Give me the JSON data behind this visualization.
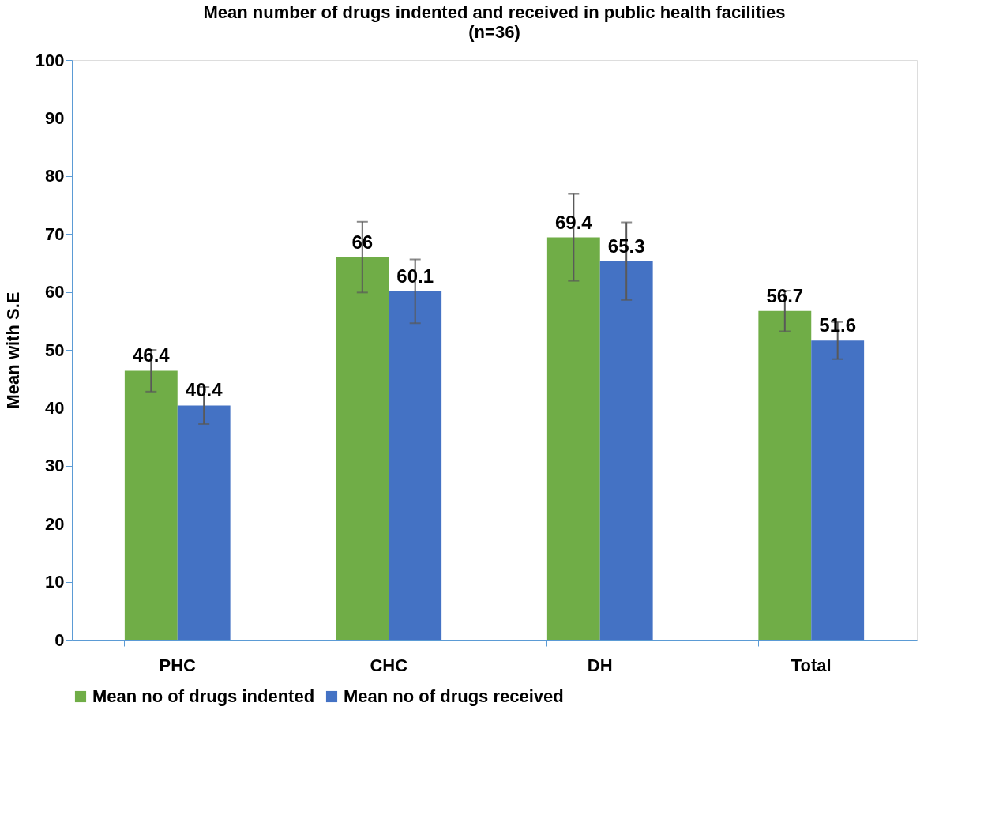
{
  "chart_data": {
    "type": "bar",
    "title": "Mean number of drugs indented and received in public health facilities",
    "subtitle": "(n=36)",
    "ylabel": "Mean with S.E",
    "categories": [
      "PHC",
      "CHC",
      "DH",
      "Total"
    ],
    "series": [
      {
        "name": "Mean no of drugs indented",
        "color": "#70ad47",
        "values": [
          46.4,
          66,
          69.4,
          56.7
        ],
        "errors": [
          3.6,
          6.1,
          7.5,
          3.5
        ]
      },
      {
        "name": "Mean no of drugs received",
        "color": "#4472c4",
        "values": [
          40.4,
          60.1,
          65.3,
          51.6
        ],
        "errors": [
          3.2,
          5.5,
          6.7,
          3.2
        ]
      }
    ],
    "ylim": [
      0,
      100
    ],
    "yticks": [
      0,
      10,
      20,
      30,
      40,
      50,
      60,
      70,
      80,
      90,
      100
    ],
    "data_labels": true,
    "grid": false,
    "legend": "bottom"
  }
}
